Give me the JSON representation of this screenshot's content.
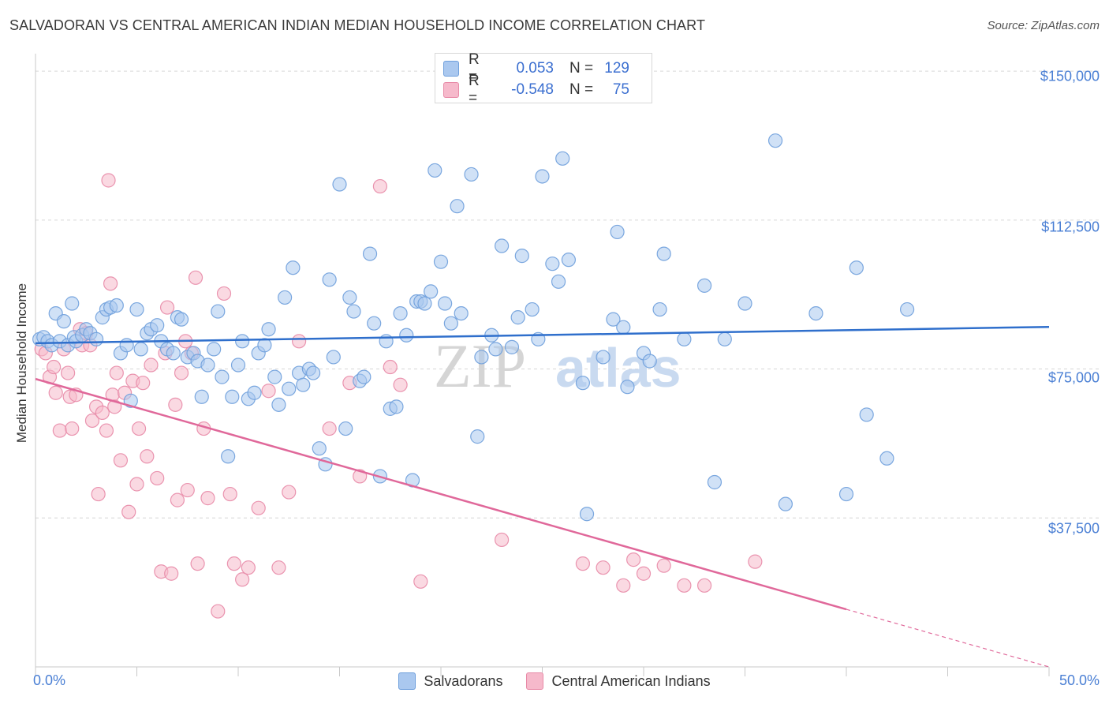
{
  "header": {
    "title": "SALVADORAN VS CENTRAL AMERICAN INDIAN MEDIAN HOUSEHOLD INCOME CORRELATION CHART",
    "source": "Source: ZipAtlas.com"
  },
  "watermark": {
    "part1": "ZIP",
    "part2": "atlas"
  },
  "colors": {
    "salvadorans_fill": "#aac8ef",
    "salvadorans_stroke": "#6e9fdc",
    "salvadorans_line": "#2f6fcc",
    "cai_fill": "#f6b9cb",
    "cai_stroke": "#e88aa7",
    "cai_line": "#e0689a",
    "tick_text": "#4a7fd4"
  },
  "legend": {
    "rows": [
      {
        "r_label": "R =",
        "r_value": "0.053",
        "n_label": "N =",
        "n_value": "129"
      },
      {
        "r_label": "R =",
        "r_value": "-0.548",
        "n_label": "N =",
        "n_value": "75"
      }
    ]
  },
  "chart_data": {
    "type": "scatter",
    "title": "SALVADORAN VS CENTRAL AMERICAN INDIAN MEDIAN HOUSEHOLD INCOME CORRELATION CHART",
    "ylabel": "Median Household Income",
    "xlabel": "",
    "xlim": [
      0,
      50
    ],
    "ylim": [
      0,
      153000
    ],
    "x_tick_labels": [
      "0.0%",
      "50.0%"
    ],
    "y_ticks": [
      37500,
      75000,
      112500,
      150000
    ],
    "y_tick_labels": [
      "$37,500",
      "$75,000",
      "$112,500",
      "$150,000"
    ],
    "grid": true,
    "legend_position": "top-center",
    "series": [
      {
        "name": "Salvadorans",
        "r": 0.053,
        "n": 129,
        "trend": {
          "x": [
            0,
            50
          ],
          "y": [
            81500,
            85600
          ]
        },
        "points": [
          [
            0.2,
            82.5
          ],
          [
            0.4,
            83
          ],
          [
            0.6,
            82
          ],
          [
            0.8,
            81
          ],
          [
            1.0,
            89
          ],
          [
            1.2,
            82
          ],
          [
            1.4,
            87
          ],
          [
            1.6,
            81
          ],
          [
            1.8,
            91.5
          ],
          [
            1.9,
            83
          ],
          [
            2.0,
            82
          ],
          [
            2.3,
            83.5
          ],
          [
            2.5,
            85
          ],
          [
            2.7,
            84
          ],
          [
            3.0,
            82.5
          ],
          [
            3.3,
            88
          ],
          [
            3.5,
            90
          ],
          [
            3.7,
            90.5
          ],
          [
            4.0,
            91
          ],
          [
            4.2,
            79
          ],
          [
            4.5,
            81
          ],
          [
            4.7,
            67
          ],
          [
            5.0,
            90
          ],
          [
            5.2,
            80
          ],
          [
            5.5,
            84
          ],
          [
            5.7,
            85
          ],
          [
            6.0,
            86
          ],
          [
            6.2,
            82
          ],
          [
            6.5,
            80
          ],
          [
            6.8,
            79
          ],
          [
            7.0,
            88
          ],
          [
            7.2,
            87.5
          ],
          [
            7.5,
            78
          ],
          [
            7.8,
            79
          ],
          [
            8.0,
            77
          ],
          [
            8.2,
            68
          ],
          [
            8.5,
            76
          ],
          [
            8.8,
            80
          ],
          [
            9.0,
            89.5
          ],
          [
            9.2,
            73
          ],
          [
            9.5,
            53
          ],
          [
            9.7,
            68
          ],
          [
            10.0,
            76
          ],
          [
            10.2,
            82
          ],
          [
            10.5,
            67.5
          ],
          [
            10.8,
            69
          ],
          [
            11.0,
            79
          ],
          [
            11.3,
            81
          ],
          [
            11.5,
            85
          ],
          [
            11.8,
            73
          ],
          [
            12.0,
            66
          ],
          [
            12.3,
            93
          ],
          [
            12.5,
            70
          ],
          [
            12.7,
            100.5
          ],
          [
            13.0,
            74
          ],
          [
            13.2,
            71
          ],
          [
            13.5,
            75
          ],
          [
            13.7,
            74
          ],
          [
            14.0,
            55
          ],
          [
            14.3,
            51
          ],
          [
            14.5,
            97.5
          ],
          [
            14.7,
            78
          ],
          [
            15.0,
            121.5
          ],
          [
            15.3,
            60
          ],
          [
            15.5,
            93
          ],
          [
            15.7,
            89.5
          ],
          [
            16.0,
            72
          ],
          [
            16.2,
            73
          ],
          [
            16.5,
            104
          ],
          [
            16.7,
            86.5
          ],
          [
            17.0,
            48
          ],
          [
            17.3,
            82
          ],
          [
            17.5,
            65
          ],
          [
            17.8,
            65.5
          ],
          [
            18.0,
            89
          ],
          [
            18.3,
            83.5
          ],
          [
            18.6,
            47
          ],
          [
            18.8,
            92
          ],
          [
            19.0,
            92
          ],
          [
            19.2,
            91.5
          ],
          [
            19.5,
            94.5
          ],
          [
            19.7,
            125
          ],
          [
            20.0,
            102
          ],
          [
            20.2,
            91.5
          ],
          [
            20.5,
            86.5
          ],
          [
            20.8,
            116
          ],
          [
            21.0,
            89
          ],
          [
            21.5,
            124
          ],
          [
            21.8,
            58
          ],
          [
            22.0,
            78
          ],
          [
            22.5,
            83.5
          ],
          [
            22.7,
            80
          ],
          [
            23.0,
            106
          ],
          [
            23.5,
            80.5
          ],
          [
            23.8,
            88
          ],
          [
            24.0,
            103.5
          ],
          [
            24.5,
            90
          ],
          [
            24.8,
            82.5
          ],
          [
            25.0,
            123.5
          ],
          [
            25.5,
            101.5
          ],
          [
            25.8,
            97
          ],
          [
            26.0,
            128
          ],
          [
            26.3,
            102.5
          ],
          [
            27.0,
            71.5
          ],
          [
            27.2,
            38.5
          ],
          [
            28.0,
            78
          ],
          [
            28.5,
            87.5
          ],
          [
            28.7,
            109.5
          ],
          [
            29.0,
            85.5
          ],
          [
            29.2,
            70.5
          ],
          [
            30.0,
            79
          ],
          [
            30.3,
            77
          ],
          [
            30.8,
            90
          ],
          [
            31.0,
            104
          ],
          [
            32.0,
            82.5
          ],
          [
            33.0,
            96
          ],
          [
            33.5,
            46.5
          ],
          [
            34.0,
            82.5
          ],
          [
            35.0,
            91.5
          ],
          [
            36.5,
            132.5
          ],
          [
            37.0,
            41
          ],
          [
            38.5,
            89
          ],
          [
            40.0,
            43.5
          ],
          [
            40.5,
            100.5
          ],
          [
            41.0,
            63.5
          ],
          [
            42.0,
            52.5
          ],
          [
            43.0,
            90
          ]
        ]
      },
      {
        "name": "Central American Indians",
        "r": -0.548,
        "n": 75,
        "trend": {
          "x": [
            0,
            40
          ],
          "y": [
            72500,
            14500
          ]
        },
        "points": [
          [
            0.3,
            80
          ],
          [
            0.5,
            79
          ],
          [
            0.7,
            73
          ],
          [
            0.9,
            75.5
          ],
          [
            1.0,
            69
          ],
          [
            1.2,
            59.5
          ],
          [
            1.4,
            80
          ],
          [
            1.6,
            74
          ],
          [
            1.7,
            68
          ],
          [
            1.8,
            60
          ],
          [
            2.0,
            68.5
          ],
          [
            2.2,
            85
          ],
          [
            2.3,
            81
          ],
          [
            2.5,
            84
          ],
          [
            2.7,
            81
          ],
          [
            2.8,
            62
          ],
          [
            3.0,
            65.5
          ],
          [
            3.1,
            43.5
          ],
          [
            3.3,
            64
          ],
          [
            3.5,
            59.5
          ],
          [
            3.6,
            122.5
          ],
          [
            3.7,
            96.5
          ],
          [
            3.8,
            68.5
          ],
          [
            3.9,
            65.5
          ],
          [
            4.0,
            74
          ],
          [
            4.2,
            52
          ],
          [
            4.4,
            69
          ],
          [
            4.6,
            39
          ],
          [
            4.8,
            72
          ],
          [
            5.0,
            46
          ],
          [
            5.1,
            60
          ],
          [
            5.3,
            71.5
          ],
          [
            5.5,
            53
          ],
          [
            5.7,
            76
          ],
          [
            6.0,
            47.5
          ],
          [
            6.2,
            24
          ],
          [
            6.4,
            79
          ],
          [
            6.5,
            90.5
          ],
          [
            6.7,
            23.5
          ],
          [
            6.9,
            66
          ],
          [
            7.0,
            42
          ],
          [
            7.2,
            74
          ],
          [
            7.4,
            82
          ],
          [
            7.5,
            44.5
          ],
          [
            7.7,
            79
          ],
          [
            7.9,
            98
          ],
          [
            8.0,
            26
          ],
          [
            8.3,
            60
          ],
          [
            8.5,
            42.5
          ],
          [
            9.0,
            14
          ],
          [
            9.3,
            94
          ],
          [
            9.6,
            43.5
          ],
          [
            9.8,
            26
          ],
          [
            10.2,
            22
          ],
          [
            10.5,
            25
          ],
          [
            11.0,
            40
          ],
          [
            11.5,
            69.5
          ],
          [
            12.0,
            25
          ],
          [
            12.5,
            44
          ],
          [
            13.0,
            82
          ],
          [
            14.5,
            60
          ],
          [
            15.5,
            71.5
          ],
          [
            16.0,
            48
          ],
          [
            17.0,
            121
          ],
          [
            17.5,
            75.5
          ],
          [
            18.0,
            71
          ],
          [
            19.0,
            21.5
          ],
          [
            23.0,
            32
          ],
          [
            27.0,
            26
          ],
          [
            28.0,
            25
          ],
          [
            29.0,
            20.5
          ],
          [
            29.5,
            27
          ],
          [
            30.0,
            23.5
          ],
          [
            31.0,
            25.5
          ],
          [
            32.0,
            20.5
          ],
          [
            33.0,
            20.5
          ],
          [
            35.5,
            26.5
          ]
        ]
      }
    ]
  },
  "bottom_legend": {
    "items": [
      {
        "label": "Salvadorans"
      },
      {
        "label": "Central American Indians"
      }
    ]
  },
  "axes": {
    "ylabel": "Median Household Income",
    "y_ticks": [
      "$150,000",
      "$112,500",
      "$75,000",
      "$37,500"
    ],
    "x_left": "0.0%",
    "x_right": "50.0%"
  }
}
